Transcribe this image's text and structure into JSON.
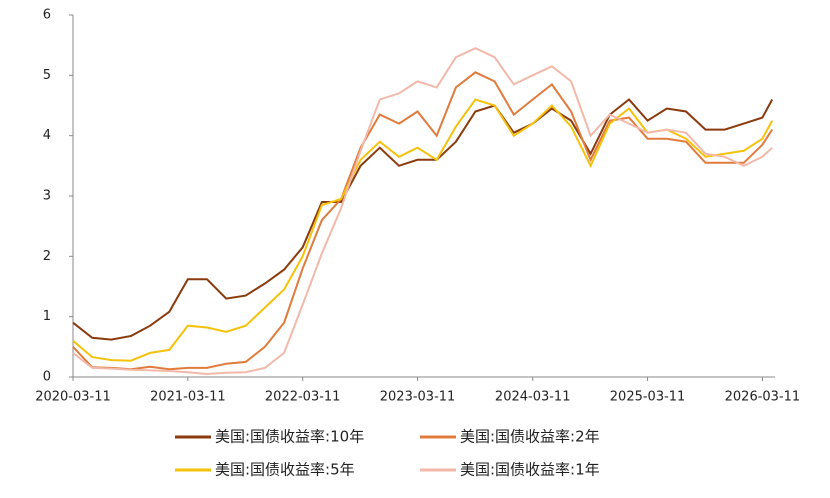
{
  "chart_data": {
    "type": "line",
    "x": [
      "2020-03-11",
      "2020-05-11",
      "2020-07-11",
      "2020-09-11",
      "2020-11-11",
      "2021-01-11",
      "2021-03-11",
      "2021-05-11",
      "2021-07-11",
      "2021-09-11",
      "2021-11-11",
      "2022-01-11",
      "2022-03-11",
      "2022-05-11",
      "2022-07-11",
      "2022-09-11",
      "2022-11-11",
      "2023-01-11",
      "2023-03-11",
      "2023-05-11",
      "2023-07-11",
      "2023-09-11",
      "2023-11-11",
      "2024-01-11",
      "2024-03-11",
      "2024-05-11",
      "2024-07-11",
      "2024-09-11",
      "2024-11-11",
      "2025-01-11",
      "2025-03-11",
      "2025-05-11",
      "2025-07-11",
      "2025-09-11",
      "2025-11-11",
      "2026-01-11",
      "2026-03-11",
      "2026-04-11"
    ],
    "series": [
      {
        "name": "美国:国债收益率:10年",
        "color": "#8b3a0e",
        "values": [
          0.9,
          0.65,
          0.62,
          0.68,
          0.85,
          1.08,
          1.62,
          1.62,
          1.3,
          1.35,
          1.55,
          1.78,
          2.15,
          2.9,
          2.9,
          3.5,
          3.8,
          3.5,
          3.6,
          3.6,
          3.9,
          4.4,
          4.5,
          4.05,
          4.2,
          4.45,
          4.25,
          3.7,
          4.35,
          4.6,
          4.25,
          4.45,
          4.4,
          4.1,
          4.1,
          4.2,
          4.3,
          4.6
        ]
      },
      {
        "name": "美国:国债收益率:2年",
        "color": "#e07b3c",
        "values": [
          0.5,
          0.16,
          0.15,
          0.13,
          0.17,
          0.13,
          0.15,
          0.15,
          0.22,
          0.25,
          0.5,
          0.9,
          1.8,
          2.6,
          2.95,
          3.8,
          4.35,
          4.2,
          4.4,
          4.0,
          4.8,
          5.05,
          4.9,
          4.35,
          4.6,
          4.85,
          4.4,
          3.6,
          4.25,
          4.3,
          3.95,
          3.95,
          3.9,
          3.55,
          3.55,
          3.55,
          3.85,
          4.1
        ]
      },
      {
        "name": "美国:国债收益率:5年",
        "color": "#f5c20b",
        "values": [
          0.6,
          0.33,
          0.28,
          0.27,
          0.4,
          0.45,
          0.85,
          0.82,
          0.75,
          0.85,
          1.15,
          1.45,
          2.0,
          2.85,
          2.95,
          3.6,
          3.9,
          3.65,
          3.8,
          3.6,
          4.15,
          4.6,
          4.5,
          4.0,
          4.2,
          4.5,
          4.15,
          3.5,
          4.2,
          4.45,
          4.05,
          4.1,
          3.95,
          3.65,
          3.7,
          3.75,
          3.95,
          4.25
        ]
      },
      {
        "name": "美国:国债收益率:1年",
        "color": "#f2b9aa",
        "values": [
          0.4,
          0.15,
          0.14,
          0.12,
          0.11,
          0.1,
          0.08,
          0.05,
          0.07,
          0.08,
          0.15,
          0.4,
          1.2,
          2.05,
          2.8,
          3.75,
          4.6,
          4.7,
          4.9,
          4.8,
          5.3,
          5.45,
          5.3,
          4.85,
          5.0,
          5.15,
          4.9,
          4.0,
          4.35,
          4.2,
          4.05,
          4.1,
          4.05,
          3.7,
          3.65,
          3.5,
          3.65,
          3.8
        ]
      }
    ],
    "xlim": [
      "2020-03-11",
      "2026-04-20"
    ],
    "xticks": [
      "2020-03-11",
      "2021-03-11",
      "2022-03-11",
      "2023-03-11",
      "2024-03-11",
      "2025-03-11",
      "2026-03-11"
    ],
    "ylim": [
      0,
      6
    ],
    "yticks": [
      0,
      1,
      2,
      3,
      4,
      5,
      6
    ]
  }
}
